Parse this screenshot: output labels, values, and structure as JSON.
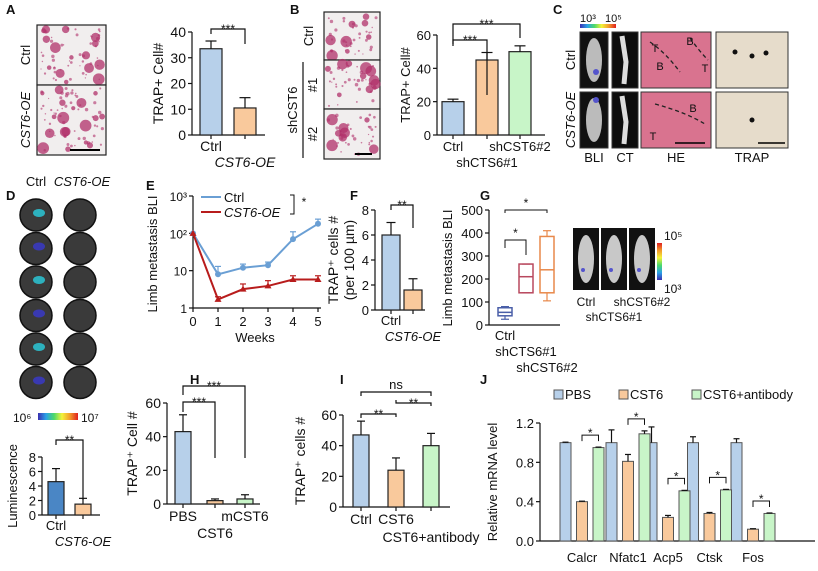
{
  "panel_labels": [
    "A",
    "B",
    "C",
    "D",
    "E",
    "F",
    "G",
    "H",
    "I",
    "J"
  ],
  "colors": {
    "blue": "#b7d0ea",
    "orange": "#f9c99c",
    "green": "#c8f5c8",
    "dark_blue": "#4a86c5",
    "ctrl_line": "#6a9fd4",
    "oe_line": "#b81c1c",
    "stain": "#b0306a"
  },
  "images": {
    "A": {
      "rows": [
        "Ctrl",
        "CST6-OE"
      ]
    },
    "B": {
      "rows": [
        "Ctrl",
        "#1",
        "#2"
      ],
      "group_label": "shCST6"
    },
    "C": {
      "rows": [
        "Ctrl",
        "CST6-OE"
      ],
      "columns": [
        "BLI",
        "CT",
        "HE",
        "TRAP"
      ],
      "colorbar": [
        "10³",
        "10⁵"
      ],
      "he_marks": [
        "T",
        "B",
        "B",
        "T",
        "B",
        "T"
      ]
    },
    "D": {
      "columns": [
        "Ctrl",
        "CST6-OE"
      ],
      "colorbar": [
        "10⁶",
        "10⁷"
      ]
    },
    "G": {
      "labels": [
        "Ctrl",
        "shCTS6#1",
        "shCST6#2"
      ],
      "colorbar": [
        "10⁵",
        "10³"
      ]
    }
  },
  "chart_data": [
    {
      "id": "A",
      "type": "bar",
      "ylabel": "TRAP+ Cell#",
      "categories": [
        "Ctrl",
        "CST6-OE"
      ],
      "values": [
        33.5,
        10.5
      ],
      "errors": [
        3,
        4
      ],
      "ylim": [
        0,
        40
      ],
      "ticks": [
        "0",
        "10",
        "20",
        "30",
        "40"
      ],
      "sig": [
        {
          "from": 0,
          "to": 1,
          "label": "***"
        }
      ]
    },
    {
      "id": "B",
      "type": "bar",
      "ylabel": "TRAP+ Cell#",
      "categories": [
        "Ctrl",
        "shCTS6#1",
        "shCST6#2"
      ],
      "values": [
        20,
        45,
        50
      ],
      "errors": [
        1.5,
        4.5,
        3.5
      ],
      "ylim": [
        0,
        60
      ],
      "ticks": [
        "0",
        "20",
        "40",
        "60"
      ],
      "sig": [
        {
          "from": 0,
          "to": 1,
          "label": "***"
        },
        {
          "from": 0,
          "to": 2,
          "label": "***"
        }
      ]
    },
    {
      "id": "D",
      "type": "bar",
      "ylabel": "Luminescence",
      "categories": [
        "Ctrl",
        "CST6-OE"
      ],
      "values": [
        4.6,
        1.5
      ],
      "errors": [
        1.8,
        0.8
      ],
      "ylim": [
        0,
        8
      ],
      "ticks": [
        "0",
        "2",
        "4",
        "6",
        "8"
      ],
      "sig": [
        {
          "from": 0,
          "to": 1,
          "label": "**"
        }
      ]
    },
    {
      "id": "E",
      "type": "line",
      "ylabel": "Limb metastasis BLI",
      "xlabel": "Weeks",
      "log_y": true,
      "ylim": [
        1,
        1000
      ],
      "yticks": [
        "1",
        "10",
        "10²",
        "10³"
      ],
      "x": [
        0,
        1,
        2,
        3,
        4,
        5
      ],
      "xticks": [
        "0",
        "1",
        "2",
        "3",
        "4",
        "5"
      ],
      "series": [
        {
          "name": "Ctrl",
          "values": [
            100,
            8,
            12,
            14,
            70,
            180
          ],
          "errors": [
            0,
            5,
            3,
            3,
            40,
            60
          ]
        },
        {
          "name": "CST6-OE",
          "values": [
            100,
            1.7,
            3.2,
            3.9,
            5.8,
            5.8
          ],
          "errors": [
            0,
            0.3,
            1.2,
            1.5,
            1.5,
            1.5
          ]
        }
      ],
      "sig": [
        {
          "label": "*"
        }
      ]
    },
    {
      "id": "F",
      "type": "bar",
      "ylabel": [
        "TRAP⁺ cells #",
        "(per 100 µm)"
      ],
      "categories": [
        "Ctrl",
        "CST6-OE"
      ],
      "values": [
        6,
        1.6
      ],
      "errors": [
        1,
        0.9
      ],
      "ylim": [
        0,
        8
      ],
      "ticks": [
        "0",
        "2",
        "4",
        "6",
        "8"
      ],
      "sig": [
        {
          "from": 0,
          "to": 1,
          "label": "**"
        }
      ]
    },
    {
      "id": "G",
      "type": "box",
      "ylabel": "Limb metastasis BLI",
      "categories": [
        "Ctrl",
        "shCTS6#1",
        "shCST6#2"
      ],
      "ylim": [
        0,
        500
      ],
      "ticks": [
        "0",
        "100",
        "200",
        "300",
        "400",
        "500"
      ],
      "boxes": [
        {
          "min": 25,
          "q1": 40,
          "median": 55,
          "q3": 75,
          "max": 80
        },
        {
          "min": 140,
          "q1": 140,
          "median": 210,
          "q3": 265,
          "max": 265
        },
        {
          "min": 105,
          "q1": 140,
          "median": 240,
          "q3": 385,
          "max": 410
        }
      ],
      "box_colors": [
        "#4a5fa8",
        "#b8485e",
        "#e8884a"
      ],
      "sig": [
        {
          "from": 0,
          "to": 1,
          "label": "*"
        },
        {
          "from": 0,
          "to": 2,
          "label": "*"
        }
      ]
    },
    {
      "id": "H",
      "type": "bar",
      "ylabel": "TRAP⁺ Cell #",
      "categories": [
        "PBS",
        "CST6",
        "mCST6"
      ],
      "values": [
        43,
        2,
        3
      ],
      "errors": [
        10,
        1,
        2.5
      ],
      "ylim": [
        0,
        60
      ],
      "ticks": [
        "0",
        "20",
        "40",
        "60"
      ],
      "sig": [
        {
          "from": 0,
          "to": 1,
          "label": "***"
        },
        {
          "from": 0,
          "to": 2,
          "label": "***"
        }
      ]
    },
    {
      "id": "I",
      "type": "bar",
      "ylabel": "TRAP⁺ cells #",
      "categories": [
        "Ctrl",
        "CST6",
        "CST6+antibody"
      ],
      "values": [
        47,
        24,
        40
      ],
      "errors": [
        9,
        8,
        8
      ],
      "ylim": [
        0,
        60
      ],
      "ticks": [
        "0",
        "20",
        "40",
        "60"
      ],
      "sig": [
        {
          "from": 0,
          "to": 1,
          "label": "**"
        },
        {
          "from": 1,
          "to": 2,
          "label": "**"
        },
        {
          "from": 0,
          "to": 2,
          "label": "ns"
        }
      ]
    },
    {
      "id": "J",
      "type": "bar",
      "ylabel": "Relative mRNA level",
      "legend_position": "top",
      "categories": [
        "Calcr",
        "Nfatc1",
        "Acp5",
        "Ctsk",
        "Fos"
      ],
      "ylim": [
        0,
        1.2
      ],
      "ticks": [
        "0.0",
        "0.4",
        "0.8",
        "1.2"
      ],
      "series": [
        {
          "name": "PBS",
          "values": [
            1.0,
            1.0,
            1.0,
            1.0,
            1.0
          ],
          "errors": [
            0.005,
            0.13,
            0.16,
            0.06,
            0.04
          ]
        },
        {
          "name": "CST6",
          "values": [
            0.4,
            0.81,
            0.24,
            0.28,
            0.12
          ],
          "errors": [
            0.005,
            0.07,
            0.02,
            0.01,
            0.005
          ]
        },
        {
          "name": "CST6+antibody",
          "values": [
            0.95,
            1.09,
            0.51,
            0.52,
            0.28
          ],
          "errors": [
            0.005,
            0.03,
            0.005,
            0.005,
            0.005
          ]
        }
      ],
      "sig": [
        {
          "label": "*"
        },
        {
          "label": "*"
        },
        {
          "label": "*"
        },
        {
          "label": "*"
        },
        {
          "label": "*"
        }
      ]
    }
  ]
}
